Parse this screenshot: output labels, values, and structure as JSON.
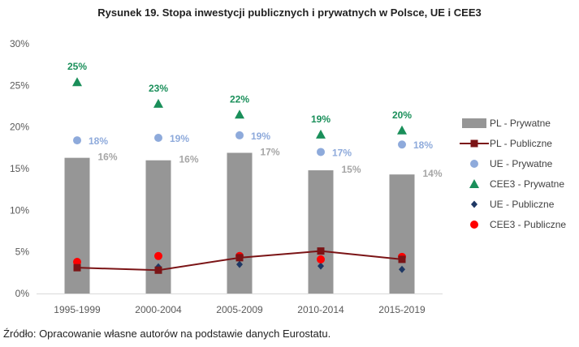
{
  "chart_data": {
    "type": "bar",
    "title": "Rysunek 19. Stopa inwestycji publicznych i prywatnych w Polsce, UE i CEE3",
    "categories": [
      "1995-1999",
      "2000-2004",
      "2005-2009",
      "2010-2014",
      "2015-2019"
    ],
    "ylim": [
      0,
      30
    ],
    "yticks": [
      "0%",
      "5%",
      "10%",
      "15%",
      "20%",
      "25%",
      "30%"
    ],
    "grid": false,
    "legend_position": "right",
    "series": [
      {
        "name": "PL - Prywatne",
        "kind": "bar",
        "color": "#969696",
        "values": [
          16.3,
          16.0,
          16.9,
          14.8,
          14.3
        ],
        "labels": [
          "16%",
          "16%",
          "17%",
          "15%",
          "14%"
        ],
        "label_color": "#a6a6a6"
      },
      {
        "name": "PL - Publiczne",
        "kind": "line",
        "color": "#7b1416",
        "values": [
          3.1,
          2.8,
          4.3,
          5.1,
          4.1
        ]
      },
      {
        "name": "UE - Prywatne",
        "kind": "marker-circle",
        "color": "#8eaadb",
        "values": [
          18.4,
          18.7,
          19.0,
          17.0,
          17.9
        ],
        "labels": [
          "18%",
          "19%",
          "19%",
          "17%",
          "18%"
        ],
        "label_color": "#8eaadb"
      },
      {
        "name": "CEE3 - Prywatne",
        "kind": "marker-triangle",
        "color": "#1a8f5a",
        "values": [
          25.4,
          22.8,
          21.5,
          19.1,
          19.6
        ],
        "labels": [
          "25%",
          "23%",
          "22%",
          "19%",
          "20%"
        ],
        "label_color": "#1a8f5a"
      },
      {
        "name": "UE - Publiczne",
        "kind": "marker-diamond",
        "color": "#1f3864",
        "values": [
          3.2,
          3.2,
          3.5,
          3.3,
          2.9
        ]
      },
      {
        "name": "CEE3 - Publiczne",
        "kind": "marker-circle",
        "color": "#ff0000",
        "values": [
          3.8,
          4.5,
          4.5,
          4.1,
          4.4
        ]
      }
    ]
  },
  "source": "Źródło: Opracowanie własne autorów na podstawie danych Eurostatu."
}
